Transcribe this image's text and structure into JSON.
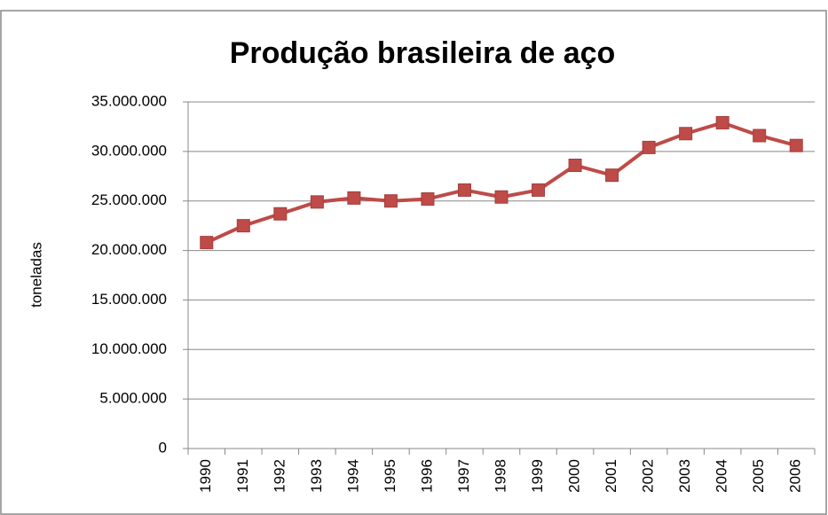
{
  "chart_data": {
    "type": "line",
    "title": "Produção brasileira de aço",
    "y_label": "toneladas",
    "categories": [
      "1990",
      "1991",
      "1992",
      "1993",
      "1994",
      "1995",
      "1996",
      "1997",
      "1998",
      "1999",
      "2000",
      "2001",
      "2002",
      "2003",
      "2004",
      "2005",
      "2006"
    ],
    "series": [
      {
        "name": "Produção",
        "color": "#be4b48",
        "values": [
          20800000,
          22500000,
          23700000,
          24900000,
          25300000,
          25000000,
          25200000,
          26100000,
          25400000,
          26100000,
          28600000,
          27600000,
          30400000,
          31800000,
          32900000,
          31600000,
          30600000
        ]
      }
    ],
    "ylim": [
      0,
      35000000
    ],
    "yticks": [
      0,
      {
        "value": 5000000,
        "label": "5.000.000"
      },
      {
        "value": 10000000,
        "label": "10.000.000"
      },
      {
        "value": 15000000,
        "label": "15.000.000"
      },
      {
        "value": 20000000,
        "label": "20.000.000"
      },
      {
        "value": 25000000,
        "label": "25.000.000"
      },
      {
        "value": 30000000,
        "label": "30.000.000"
      },
      {
        "value": 35000000,
        "label": "35.000.000"
      }
    ],
    "grid": true
  }
}
